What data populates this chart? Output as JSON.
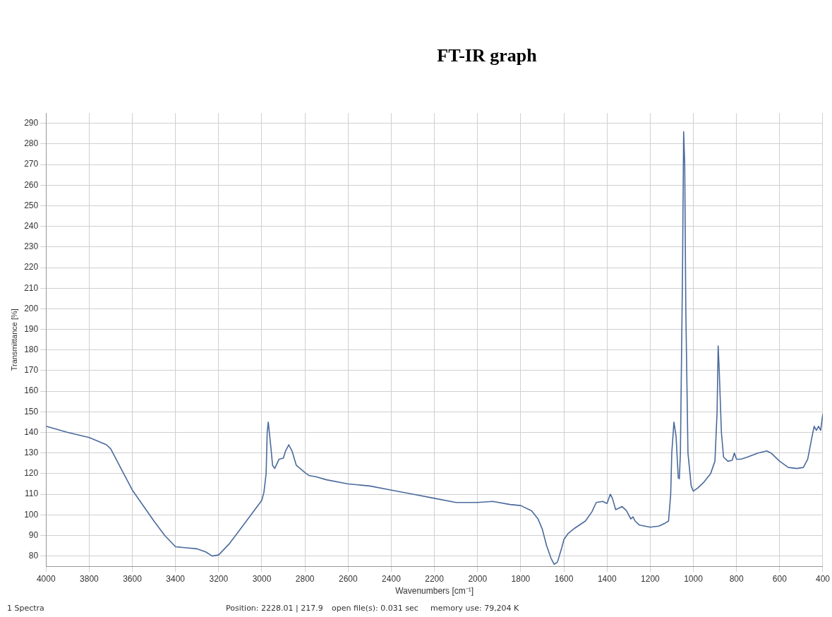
{
  "chart_data": {
    "type": "line",
    "title": "FT-IR graph",
    "xlabel": "Wavenumbers [cm⁻¹]",
    "ylabel": "Transmittance [%]",
    "annotations": [
      "1 Spectra",
      "Position: 2228.01 | 217.9",
      "open file(s): 0.031 sec",
      "memory use: 79,204 K"
    ],
    "xlim": [
      4000,
      400
    ],
    "xticks": [
      4000,
      3800,
      3600,
      3400,
      3200,
      3000,
      2800,
      2600,
      2400,
      2200,
      2000,
      1800,
      1600,
      1400,
      1200,
      1000,
      800,
      600,
      400
    ],
    "ylim": [
      75,
      295
    ],
    "yticks": [
      80,
      90,
      100,
      110,
      120,
      130,
      140,
      150,
      160,
      170,
      180,
      190,
      200,
      210,
      220,
      230,
      240,
      250,
      260,
      270,
      280,
      290
    ],
    "grid": true,
    "legend": false,
    "marker": "none",
    "line_style": "solid",
    "series": [
      {
        "color": "#4a6a9c",
        "x": [
          4000,
          3900,
          3800,
          3720,
          3700,
          3650,
          3600,
          3500,
          3450,
          3400,
          3350,
          3300,
          3260,
          3230,
          3200,
          3150,
          3100,
          3050,
          3000,
          2990,
          2980,
          2975,
          2970,
          2960,
          2950,
          2940,
          2920,
          2900,
          2890,
          2875,
          2860,
          2840,
          2800,
          2780,
          2750,
          2700,
          2600,
          2500,
          2400,
          2300,
          2200,
          2100,
          2000,
          1930,
          1850,
          1800,
          1750,
          1720,
          1700,
          1680,
          1660,
          1645,
          1630,
          1610,
          1600,
          1580,
          1550,
          1500,
          1470,
          1450,
          1420,
          1400,
          1385,
          1375,
          1360,
          1330,
          1310,
          1290,
          1280,
          1270,
          1250,
          1200,
          1160,
          1130,
          1115,
          1105,
          1100,
          1090,
          1080,
          1070,
          1065,
          1060,
          1050,
          1045,
          1040,
          1035,
          1025,
          1010,
          1000,
          980,
          950,
          920,
          900,
          890,
          885,
          880,
          870,
          860,
          840,
          820,
          810,
          800,
          780,
          750,
          700,
          660,
          640,
          600,
          560,
          520,
          490,
          470,
          450,
          440,
          430,
          420,
          410,
          400
        ],
        "values": [
          143,
          140,
          137.5,
          134,
          132,
          122,
          112,
          97,
          90,
          84.5,
          84,
          83.5,
          82,
          80,
          80.5,
          86,
          93,
          100,
          107,
          111,
          120,
          140,
          145,
          135,
          124,
          122.5,
          127,
          127.5,
          131,
          134,
          131,
          124,
          120.5,
          119,
          118.5,
          117,
          115,
          114,
          112,
          110,
          108,
          106,
          106,
          106.5,
          105,
          104.5,
          102,
          98,
          93,
          85,
          79,
          76,
          77,
          84,
          88,
          91,
          93.5,
          97,
          101.5,
          106,
          106.5,
          105.5,
          110,
          108,
          102.5,
          104,
          102,
          98,
          99,
          97,
          95,
          94,
          94.5,
          96,
          97,
          110,
          130,
          145,
          138,
          118,
          117.5,
          130,
          220,
          286,
          270,
          200,
          130,
          114,
          111.5,
          113,
          116,
          120,
          126,
          150,
          182,
          170,
          140,
          128,
          126,
          126.5,
          130,
          127,
          127,
          128,
          130,
          131,
          130,
          126,
          123,
          122.5,
          123,
          127,
          138,
          143,
          141,
          143,
          141,
          149
        ]
      }
    ]
  }
}
